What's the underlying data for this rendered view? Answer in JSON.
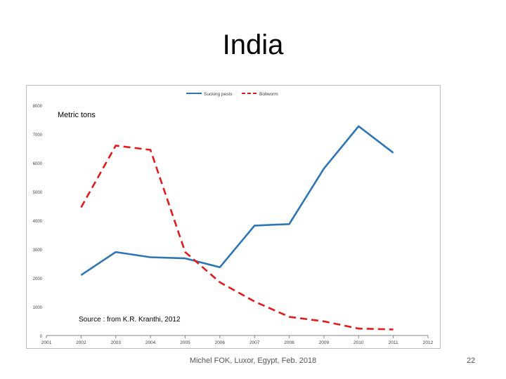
{
  "slide": {
    "title": "India",
    "footer": "Michel FOK, Luxor, Egypt, Feb. 2018",
    "page_number": "22"
  },
  "chart_data": {
    "type": "line",
    "x": [
      2002,
      2003,
      2004,
      2005,
      2006,
      2007,
      2008,
      2009,
      2010,
      2011
    ],
    "series": [
      {
        "name": "Sucking pests",
        "color": "#2e75b6",
        "dash": "solid",
        "values": [
          2100,
          2900,
          2720,
          2680,
          2370,
          3820,
          3870,
          5800,
          7270,
          6350
        ]
      },
      {
        "name": "Bollworm",
        "color": "#e31a1c",
        "dash": "dashed",
        "values": [
          4450,
          6600,
          6450,
          2900,
          1850,
          1180,
          650,
          490,
          240,
          210
        ]
      }
    ],
    "xlim": [
      2001,
      2012
    ],
    "ylim": [
      0,
      8000
    ],
    "yticks": [
      0,
      1000,
      2000,
      3000,
      4000,
      5000,
      6000,
      7000,
      8000
    ],
    "xticks": [
      2001,
      2002,
      2003,
      2004,
      2005,
      2006,
      2007,
      2008,
      2009,
      2010,
      2011,
      2012
    ],
    "ylabel": "Metric tons",
    "annotation": "Source : from K.R. Kranthi, 2012",
    "legend_position": "top-center",
    "grid": false
  }
}
